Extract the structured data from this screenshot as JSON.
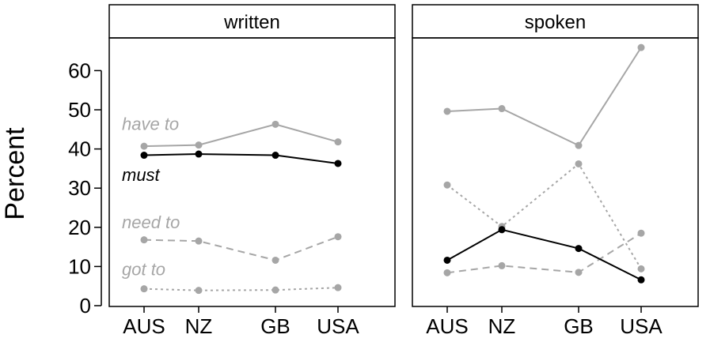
{
  "chart_data": {
    "type": "line",
    "ylabel": "Percent",
    "ylim": [
      0,
      68
    ],
    "yticks": [
      0,
      10,
      20,
      30,
      40,
      50,
      60
    ],
    "categories": [
      "AUS",
      "NZ",
      "GB",
      "USA"
    ],
    "colors": {
      "black": "#000000",
      "gray": "#a6a6a6"
    },
    "panels": [
      {
        "strip": "written",
        "series": [
          {
            "name": "have to",
            "color": "gray",
            "dash": "solid",
            "values": [
              40.7,
              41.0,
              46.3,
              41.8
            ]
          },
          {
            "name": "must",
            "color": "black",
            "dash": "solid",
            "values": [
              38.4,
              38.7,
              38.4,
              36.3
            ]
          },
          {
            "name": "need to",
            "color": "gray",
            "dash": "dashed",
            "values": [
              16.8,
              16.5,
              11.6,
              17.6
            ]
          },
          {
            "name": "got to",
            "color": "gray",
            "dash": "dotted",
            "values": [
              4.3,
              3.9,
              4.0,
              4.6
            ]
          }
        ],
        "labels": [
          {
            "text": "have to",
            "series": 0,
            "color": "gray",
            "anchor_value": 46.5
          },
          {
            "text": "must",
            "series": 1,
            "color": "black",
            "anchor_value": 33.5
          },
          {
            "text": "need to",
            "series": 2,
            "color": "gray",
            "anchor_value": 21.4
          },
          {
            "text": "got to",
            "series": 3,
            "color": "gray",
            "anchor_value": 9.4
          }
        ]
      },
      {
        "strip": "spoken",
        "series": [
          {
            "color": "gray",
            "dash": "solid",
            "values": [
              49.6,
              50.3,
              40.9,
              65.9
            ]
          },
          {
            "color": "black",
            "dash": "solid",
            "values": [
              11.6,
              19.4,
              14.6,
              6.6
            ]
          },
          {
            "color": "gray",
            "dash": "dashed",
            "values": [
              8.4,
              10.2,
              8.5,
              18.5
            ]
          },
          {
            "color": "gray",
            "dash": "dotted",
            "values": [
              30.8,
              20.2,
              36.2,
              9.4
            ]
          }
        ]
      }
    ]
  }
}
